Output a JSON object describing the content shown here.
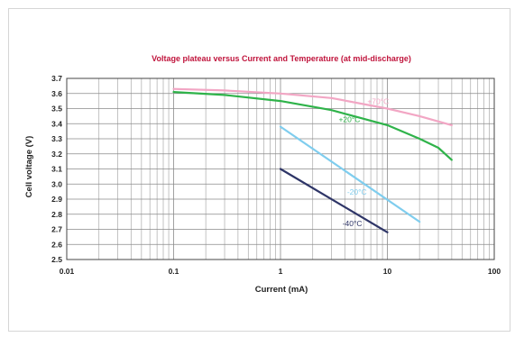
{
  "chart_data": {
    "type": "line",
    "title": "Voltage plateau versus Current and Temperature (at mid-discharge)",
    "xlabel": "Current (mA)",
    "ylabel": "Cell voltage (V)",
    "xscale": "log",
    "xlim": [
      0.01,
      100
    ],
    "ylim": [
      2.5,
      3.7
    ],
    "x_ticks": [
      {
        "value": 0.01,
        "label": "0.01"
      },
      {
        "value": 0.1,
        "label": "0.1"
      },
      {
        "value": 1,
        "label": "1"
      },
      {
        "value": 10,
        "label": "10"
      },
      {
        "value": 100,
        "label": "100"
      }
    ],
    "y_ticks": [
      {
        "value": 2.5,
        "label": "2.5"
      },
      {
        "value": 2.6,
        "label": "2.6"
      },
      {
        "value": 2.7,
        "label": "2.7"
      },
      {
        "value": 2.8,
        "label": "2.8"
      },
      {
        "value": 2.9,
        "label": "2.9"
      },
      {
        "value": 3.0,
        "label": "3.0"
      },
      {
        "value": 3.1,
        "label": "3.1"
      },
      {
        "value": 3.2,
        "label": "3.2"
      },
      {
        "value": 3.3,
        "label": "3.3"
      },
      {
        "value": 3.4,
        "label": "3.4"
      },
      {
        "value": 3.5,
        "label": "3.5"
      },
      {
        "value": 3.6,
        "label": "3.6"
      },
      {
        "value": 3.7,
        "label": "3.7"
      }
    ],
    "grid": true,
    "series": [
      {
        "label": "+70°C",
        "color": "#f2a6c4",
        "label_at": [
          6.5,
          3.53
        ],
        "points": [
          [
            0.1,
            3.63
          ],
          [
            0.3,
            3.62
          ],
          [
            1,
            3.6
          ],
          [
            3,
            3.57
          ],
          [
            10,
            3.5
          ],
          [
            20,
            3.45
          ],
          [
            40,
            3.39
          ]
        ]
      },
      {
        "label": "+20°C",
        "color": "#2fb34a",
        "label_at": [
          3.5,
          3.41
        ],
        "points": [
          [
            0.1,
            3.61
          ],
          [
            0.3,
            3.59
          ],
          [
            1,
            3.55
          ],
          [
            3,
            3.49
          ],
          [
            10,
            3.39
          ],
          [
            20,
            3.3
          ],
          [
            30,
            3.24
          ],
          [
            40,
            3.16
          ]
        ]
      },
      {
        "label": "-20°C",
        "color": "#7fcdee",
        "label_at": [
          4.2,
          2.93
        ],
        "points": [
          [
            1,
            3.38
          ],
          [
            20,
            2.75
          ]
        ]
      },
      {
        "label": "-40°C",
        "color": "#2e3567",
        "label_at": [
          3.8,
          2.72
        ],
        "points": [
          [
            1,
            3.1
          ],
          [
            10,
            2.68
          ]
        ]
      }
    ]
  }
}
